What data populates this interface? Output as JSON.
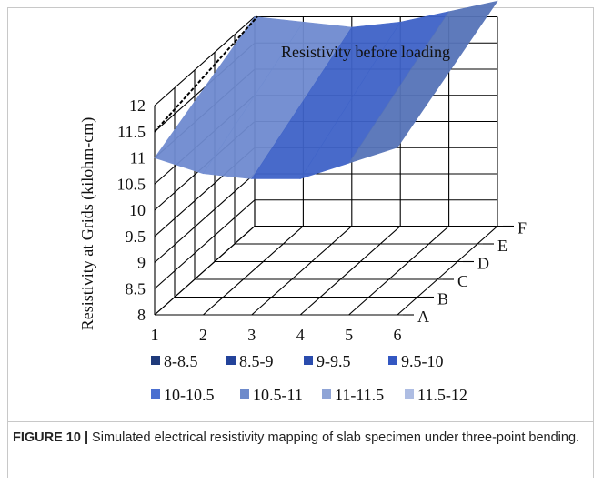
{
  "chart_data": {
    "type": "surface3d",
    "ylabel": "Resistivity at Grids (kilohm-cm)",
    "x_ticks": [
      "1",
      "2",
      "3",
      "4",
      "5",
      "6"
    ],
    "z_ticks": [
      "A",
      "B",
      "C",
      "D",
      "E",
      "F"
    ],
    "y_ticks": [
      "8",
      "8.5",
      "9",
      "9.5",
      "10",
      "10.5",
      "11",
      "11.5",
      "12"
    ],
    "ylim": [
      8,
      12
    ],
    "annotation": "Resistivity before loading",
    "reference_value": 11.5,
    "surface": {
      "rows": [
        "A",
        "F"
      ],
      "columns": [
        "1",
        "2",
        "3",
        "4",
        "5",
        "6"
      ],
      "values": [
        [
          11.0,
          10.7,
          10.6,
          10.6,
          10.9,
          11.2
        ],
        [
          12.0,
          11.9,
          11.8,
          11.9,
          12.1,
          12.3
        ]
      ]
    },
    "legend": [
      {
        "label": "8-8.5",
        "color": "#1f3a7a"
      },
      {
        "label": "8.5-9",
        "color": "#23439a"
      },
      {
        "label": "9-9.5",
        "color": "#2a4cad"
      },
      {
        "label": "9.5-10",
        "color": "#3357c2"
      },
      {
        "label": "10-10.5",
        "color": "#4a6fd0"
      },
      {
        "label": "10.5-11",
        "color": "#6d8acb"
      },
      {
        "label": "11-11.5",
        "color": "#8fa4d6"
      },
      {
        "label": "11.5-12",
        "color": "#aebde3"
      }
    ]
  },
  "caption": {
    "label": "FIGURE 10 |",
    "text": " Simulated electrical resistivity mapping of slab specimen under three-point bending."
  }
}
